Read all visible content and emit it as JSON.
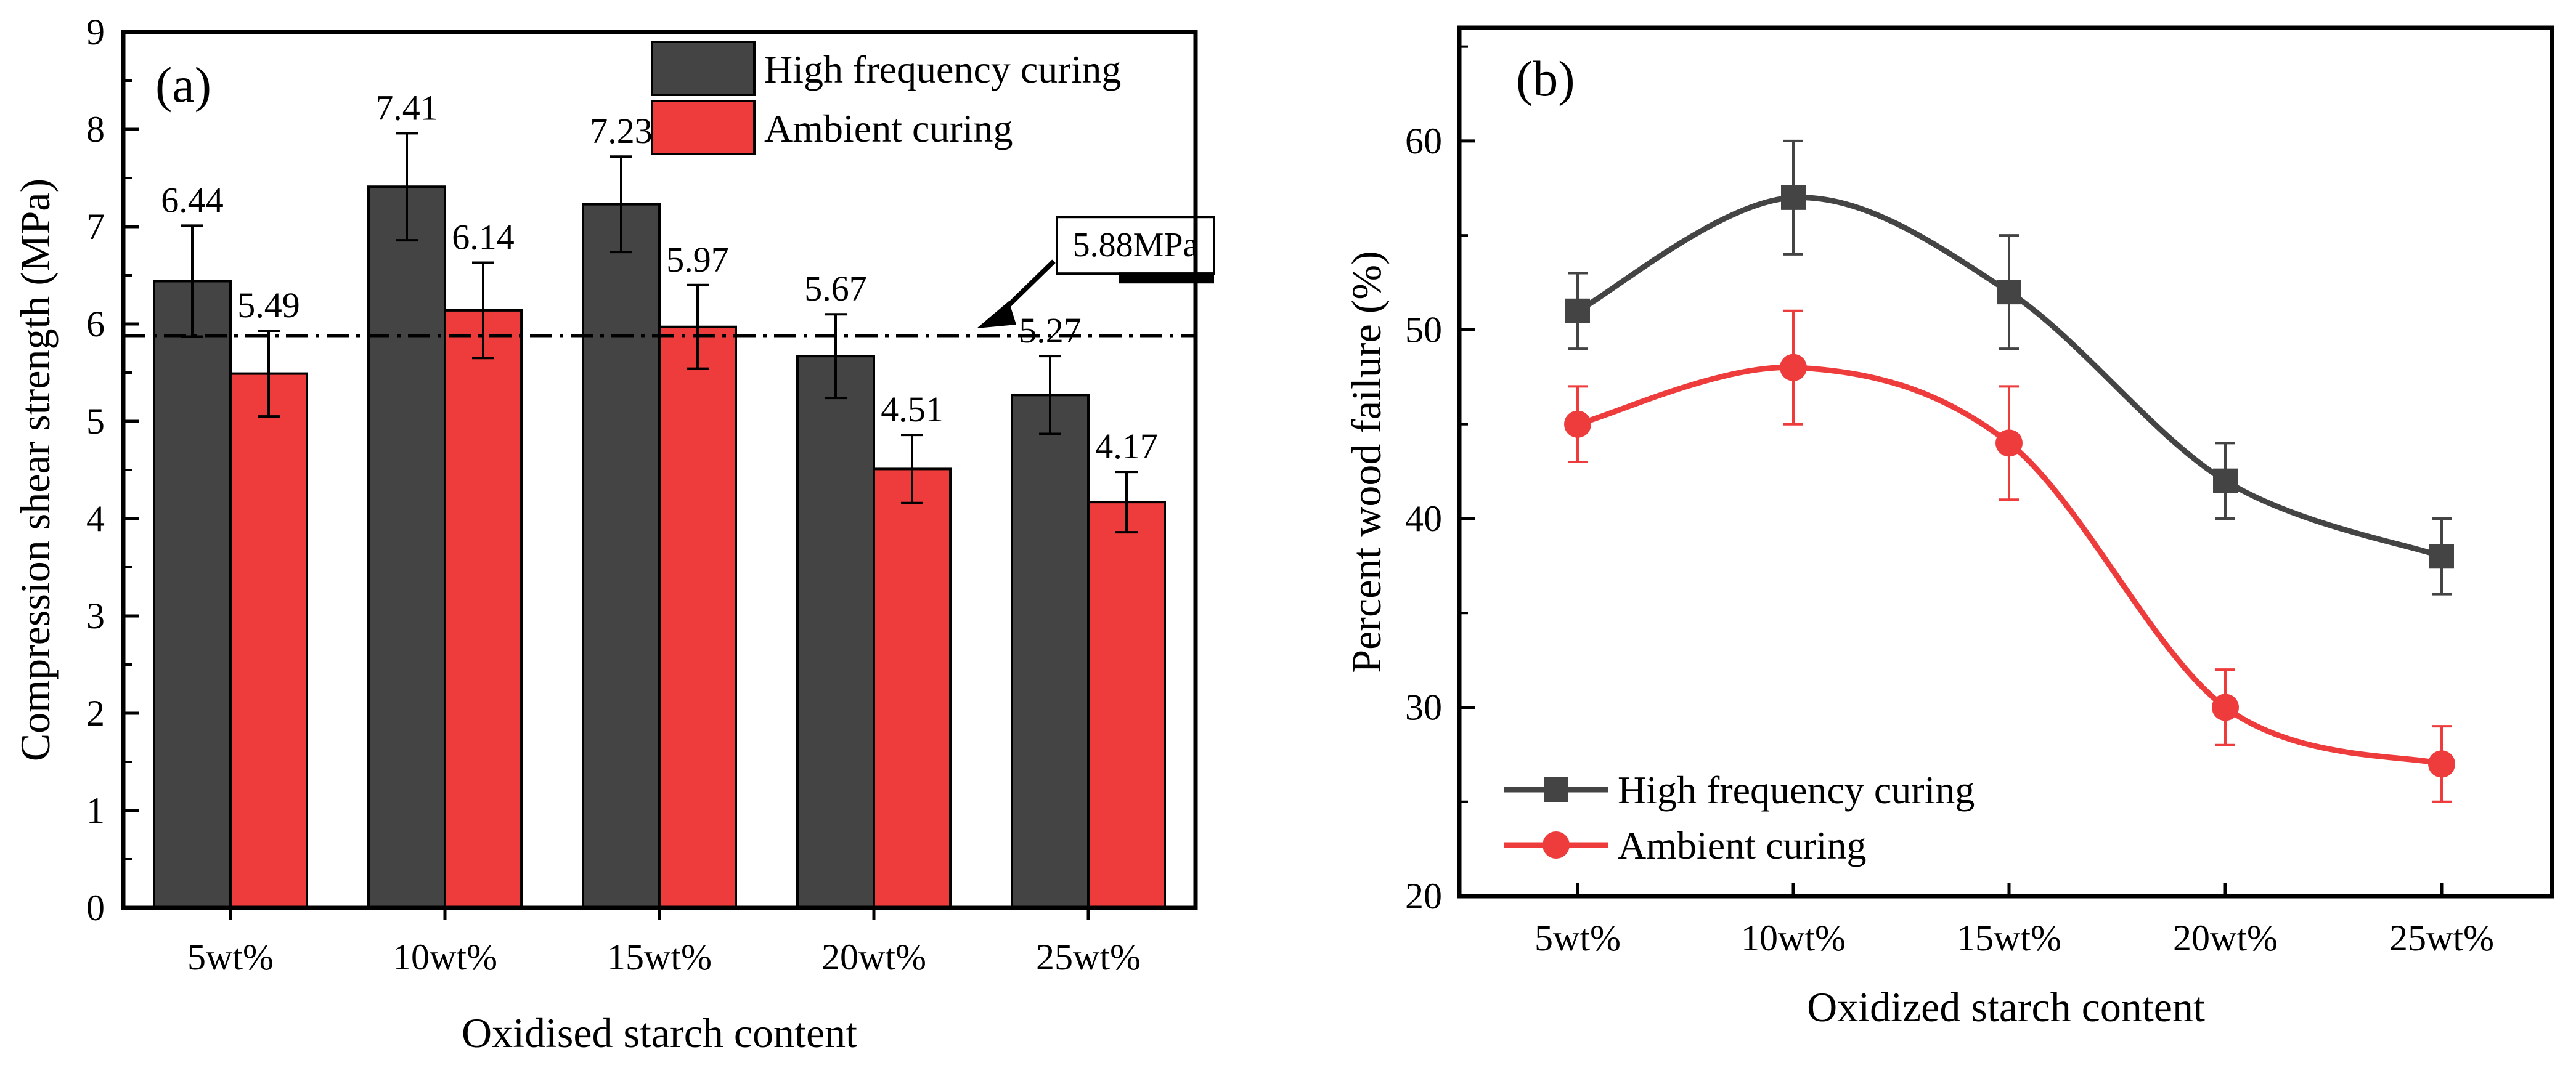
{
  "chart_data": [
    {
      "type": "bar",
      "panel_label": "(a)",
      "xlabel": "Oxidised starch content",
      "ylabel": "Compression shear strength (MPa)",
      "ylim": [
        0,
        9
      ],
      "yticks": [
        0,
        1,
        2,
        3,
        4,
        5,
        6,
        7,
        8,
        9
      ],
      "categories": [
        "5wt%",
        "10wt%",
        "15wt%",
        "20wt%",
        "25wt%"
      ],
      "series": [
        {
          "name": "High frequency curing",
          "color": "#444444",
          "values": [
            6.44,
            7.41,
            7.23,
            5.67,
            5.27
          ],
          "errors": [
            0.57,
            0.55,
            0.49,
            0.43,
            0.4
          ],
          "labels": [
            "6.44",
            "7.41",
            "7.23",
            "5.67",
            "5.27"
          ]
        },
        {
          "name": "Ambient curing",
          "color": "#ee3b3b",
          "values": [
            5.49,
            6.14,
            5.97,
            4.51,
            4.17
          ],
          "errors": [
            0.44,
            0.49,
            0.43,
            0.35,
            0.31
          ],
          "labels": [
            "5.49",
            "6.14",
            "5.97",
            "4.51",
            "4.17"
          ]
        }
      ],
      "reference_line": {
        "value": 5.88,
        "label": "5.88MPa"
      },
      "legend": "top-right",
      "grid": false
    },
    {
      "type": "line",
      "panel_label": "(b)",
      "xlabel": "Oxidized starch content",
      "ylabel": "Percent wood failure (%)",
      "ylim": [
        20,
        66
      ],
      "yticks": [
        20,
        30,
        40,
        50,
        60
      ],
      "categories": [
        "5wt%",
        "10wt%",
        "15wt%",
        "20wt%",
        "25wt%"
      ],
      "series": [
        {
          "name": "High frequency curing",
          "color": "#444444",
          "marker": "square",
          "values": [
            51,
            57,
            52,
            42,
            38
          ],
          "errors": [
            2,
            3,
            3,
            2,
            2
          ]
        },
        {
          "name": "Ambient curing",
          "color": "#ee3b3b",
          "marker": "circle",
          "values": [
            45,
            48,
            44,
            30,
            27
          ],
          "errors": [
            2,
            3,
            3,
            2,
            2
          ]
        }
      ],
      "legend": "bottom-left",
      "grid": false
    }
  ]
}
